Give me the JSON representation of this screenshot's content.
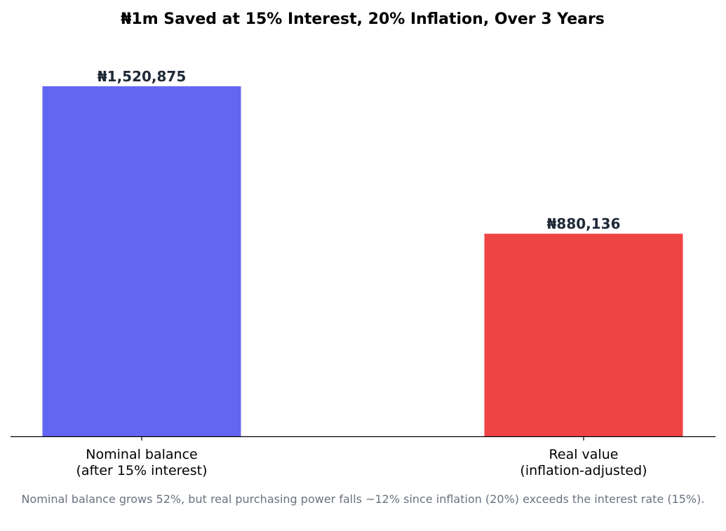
{
  "chart_data": {
    "type": "bar",
    "title": "₦1m Saved at 15% Interest, 20% Inflation, Over 3 Years",
    "categories": [
      [
        "Nominal balance",
        "(after 15% interest)"
      ],
      [
        "Real value",
        "(inflation-adjusted)"
      ]
    ],
    "values": [
      1520875,
      880136
    ],
    "value_labels": [
      "₦1,520,875",
      "₦880,136"
    ],
    "colors": [
      "#6366f1",
      "#ef4444"
    ],
    "xlabel": "",
    "ylabel": "",
    "ylim": [
      0,
      1596919
    ],
    "grid": false,
    "legend": "none",
    "y_axis_visible": false
  },
  "caption": "Nominal balance grows 52%, but real purchasing power falls ~12% since inflation (20%) exceeds the interest rate (15%)."
}
